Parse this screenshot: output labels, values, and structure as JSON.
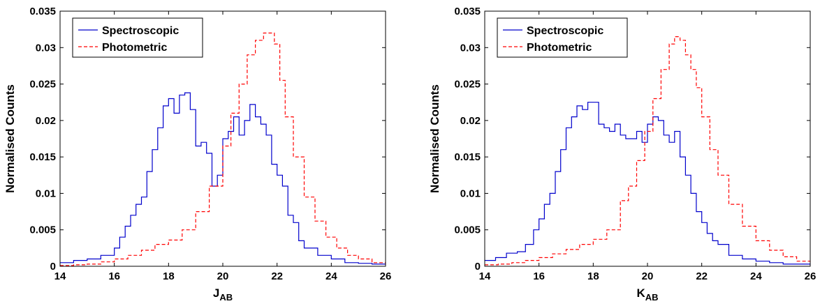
{
  "chart_data": [
    {
      "type": "line",
      "step": true,
      "xlabel_main": "J",
      "xlabel_sub": "AB",
      "ylabel": "Normalised Counts",
      "xlim": [
        14,
        26
      ],
      "ylim": [
        0,
        0.035
      ],
      "xticks": [
        "14",
        "16",
        "18",
        "20",
        "22",
        "24",
        "26"
      ],
      "yticks": [
        "0",
        "0.005",
        "0.01",
        "0.015",
        "0.02",
        "0.025",
        "0.03",
        "0.035"
      ],
      "legend_position": "top-left",
      "series": [
        {
          "name": "Spectroscopic",
          "color": "#0000cc",
          "style": "solid",
          "x": [
            14.0,
            14.5,
            15.0,
            15.5,
            16.0,
            16.2,
            16.4,
            16.6,
            16.8,
            17.0,
            17.2,
            17.4,
            17.6,
            17.8,
            18.0,
            18.2,
            18.4,
            18.6,
            18.8,
            19.0,
            19.2,
            19.4,
            19.6,
            19.8,
            20.0,
            20.2,
            20.4,
            20.6,
            20.8,
            21.0,
            21.2,
            21.4,
            21.6,
            21.8,
            22.0,
            22.2,
            22.4,
            22.6,
            22.8,
            23.0,
            23.5,
            24.0,
            24.5,
            25.0,
            25.5,
            26.0
          ],
          "y": [
            0.0005,
            0.0008,
            0.001,
            0.0015,
            0.0025,
            0.004,
            0.0055,
            0.007,
            0.0085,
            0.0095,
            0.013,
            0.016,
            0.019,
            0.022,
            0.023,
            0.021,
            0.0235,
            0.0238,
            0.0215,
            0.0165,
            0.017,
            0.0155,
            0.011,
            0.0125,
            0.0175,
            0.0185,
            0.0205,
            0.018,
            0.02,
            0.0222,
            0.0205,
            0.0195,
            0.018,
            0.014,
            0.0125,
            0.011,
            0.007,
            0.006,
            0.0035,
            0.0025,
            0.0015,
            0.001,
            0.0005,
            0.0004,
            0.0003,
            0.0002
          ]
        },
        {
          "name": "Photometric",
          "color": "#ff0000",
          "style": "dashed",
          "x": [
            14.0,
            14.5,
            15.0,
            15.5,
            16.0,
            16.5,
            17.0,
            17.5,
            18.0,
            18.5,
            19.0,
            19.5,
            20.0,
            20.3,
            20.6,
            20.9,
            21.2,
            21.5,
            21.7,
            21.9,
            22.1,
            22.3,
            22.6,
            23.0,
            23.4,
            23.8,
            24.2,
            24.6,
            25.0,
            25.5,
            26.0
          ],
          "y": [
            0.0001,
            0.0002,
            0.0003,
            0.0006,
            0.001,
            0.0015,
            0.0022,
            0.003,
            0.0036,
            0.005,
            0.0075,
            0.011,
            0.0165,
            0.021,
            0.025,
            0.029,
            0.031,
            0.032,
            0.032,
            0.0305,
            0.0255,
            0.0205,
            0.015,
            0.0095,
            0.0062,
            0.004,
            0.0025,
            0.0015,
            0.001,
            0.0005,
            0.0002
          ]
        }
      ]
    },
    {
      "type": "line",
      "step": true,
      "xlabel_main": "K",
      "xlabel_sub": "AB",
      "ylabel": "Normalised Counts",
      "xlim": [
        14,
        26
      ],
      "ylim": [
        0,
        0.035
      ],
      "xticks": [
        "14",
        "16",
        "18",
        "20",
        "22",
        "24",
        "26"
      ],
      "yticks": [
        "0",
        "0.005",
        "0.01",
        "0.015",
        "0.02",
        "0.025",
        "0.03",
        "0.035"
      ],
      "legend_position": "top-left",
      "series": [
        {
          "name": "Spectroscopic",
          "color": "#0000cc",
          "style": "solid",
          "x": [
            14.0,
            14.4,
            14.8,
            15.2,
            15.5,
            15.8,
            16.0,
            16.2,
            16.4,
            16.6,
            16.8,
            17.0,
            17.2,
            17.4,
            17.6,
            17.8,
            18.0,
            18.2,
            18.4,
            18.6,
            18.8,
            19.0,
            19.2,
            19.4,
            19.6,
            19.8,
            20.0,
            20.2,
            20.4,
            20.6,
            20.8,
            21.0,
            21.2,
            21.4,
            21.6,
            21.8,
            22.0,
            22.2,
            22.4,
            22.6,
            23.0,
            23.5,
            24.0,
            24.5,
            25.0,
            26.0
          ],
          "y": [
            0.0008,
            0.0012,
            0.0018,
            0.002,
            0.003,
            0.005,
            0.0065,
            0.0085,
            0.01,
            0.013,
            0.016,
            0.019,
            0.0205,
            0.022,
            0.0215,
            0.0225,
            0.0225,
            0.0195,
            0.019,
            0.0185,
            0.0195,
            0.018,
            0.0175,
            0.0175,
            0.0185,
            0.017,
            0.0195,
            0.0205,
            0.02,
            0.018,
            0.017,
            0.0185,
            0.015,
            0.0125,
            0.01,
            0.0075,
            0.006,
            0.0045,
            0.0035,
            0.003,
            0.0015,
            0.001,
            0.0007,
            0.0005,
            0.0003,
            0.0002
          ]
        },
        {
          "name": "Photometric",
          "color": "#ff0000",
          "style": "dashed",
          "x": [
            14.0,
            14.5,
            15.0,
            15.5,
            16.0,
            16.5,
            17.0,
            17.5,
            18.0,
            18.5,
            19.0,
            19.3,
            19.6,
            19.9,
            20.2,
            20.5,
            20.8,
            21.0,
            21.2,
            21.4,
            21.6,
            21.8,
            22.0,
            22.3,
            22.6,
            23.0,
            23.5,
            24.0,
            24.5,
            25.0,
            25.5,
            26.0
          ],
          "y": [
            0.0002,
            0.0003,
            0.0005,
            0.0008,
            0.0012,
            0.0017,
            0.0023,
            0.003,
            0.0037,
            0.005,
            0.009,
            0.011,
            0.0145,
            0.0185,
            0.023,
            0.027,
            0.0305,
            0.0315,
            0.031,
            0.029,
            0.027,
            0.0245,
            0.0205,
            0.016,
            0.0125,
            0.0085,
            0.0055,
            0.0035,
            0.0022,
            0.0013,
            0.0007,
            0.0004
          ]
        }
      ]
    }
  ]
}
